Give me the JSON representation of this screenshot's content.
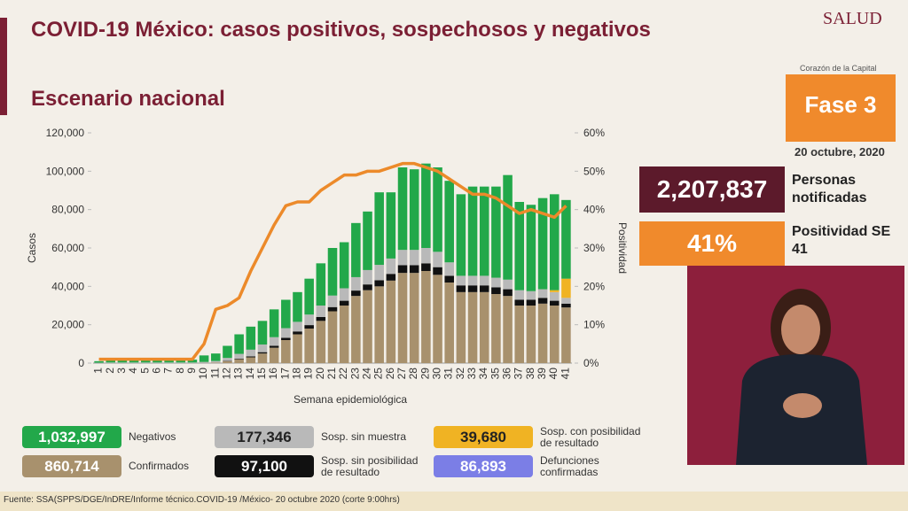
{
  "header": {
    "title": "COVID-19 México: casos positivos, sospechosos y negativos",
    "subtitle": "Escenario nacional",
    "logo": "SALUD",
    "logo_sub": "Corazón de la Capital",
    "phase": "Fase 3",
    "date": "20 octubre, 2020"
  },
  "kpis": [
    {
      "value": "2,207,837",
      "label": "Personas notificadas"
    },
    {
      "value": "41%",
      "label": "Positividad SE 41"
    }
  ],
  "footer": "Fuente: SSA(SPPS/DGE/InDRE/Informe técnico.COVID-19 /México- 20 octubre 2020 (corte 9:00hrs)",
  "chart_data": {
    "type": "bar",
    "stacked": true,
    "xlabel": "Semana epidemiológica",
    "ylabel": "Casos",
    "y2label": "Positividad",
    "categories": [
      "1",
      "2",
      "3",
      "4",
      "5",
      "6",
      "7",
      "8",
      "9",
      "10",
      "11",
      "12",
      "13",
      "14",
      "15",
      "16",
      "17",
      "18",
      "19",
      "20",
      "21",
      "22",
      "23",
      "24",
      "25",
      "26",
      "27",
      "28",
      "29",
      "30",
      "31",
      "32",
      "33",
      "34",
      "35",
      "36",
      "37",
      "38",
      "39",
      "40",
      "41"
    ],
    "ylim": [
      0,
      120000
    ],
    "yticks": [
      0,
      {
        "value": 20000,
        "label": "20,000"
      },
      {
        "value": 40000,
        "label": "40,000"
      },
      {
        "value": 60000,
        "label": "60,000"
      },
      {
        "value": 80000,
        "label": "80,000"
      },
      {
        "value": 100000,
        "label": "100,000"
      },
      {
        "value": 120000,
        "label": "120,000"
      }
    ],
    "y2lim": [
      0,
      60
    ],
    "y2ticks": [
      {
        "value": 0,
        "label": "0%"
      },
      {
        "value": 10,
        "label": "10%"
      },
      {
        "value": 20,
        "label": "20%"
      },
      {
        "value": 30,
        "label": "30%"
      },
      {
        "value": 40,
        "label": "40%"
      },
      {
        "value": 50,
        "label": "50%"
      },
      {
        "value": 60,
        "label": "60%"
      }
    ],
    "series": [
      {
        "name": "Confirmados",
        "total": "860,714",
        "color": "#a8916d",
        "values": [
          0,
          0,
          0,
          0,
          0,
          0,
          0,
          0,
          0,
          100,
          300,
          1000,
          2000,
          3000,
          5000,
          8000,
          12000,
          15000,
          18000,
          22000,
          27000,
          30000,
          35000,
          38000,
          40000,
          43000,
          47000,
          47000,
          48000,
          46000,
          42000,
          37000,
          37000,
          37000,
          36000,
          35000,
          30000,
          30000,
          31000,
          30000,
          29000
        ]
      },
      {
        "name": "Sosp. sin posibilidad de resultado",
        "total": "97,100",
        "color": "#111111",
        "values": [
          0,
          0,
          0,
          0,
          0,
          0,
          0,
          0,
          0,
          0,
          0,
          200,
          300,
          500,
          700,
          1000,
          1200,
          1500,
          1800,
          2000,
          2200,
          2500,
          2800,
          3000,
          3200,
          3500,
          4000,
          4000,
          4000,
          4000,
          3500,
          3500,
          3500,
          3500,
          3500,
          3500,
          3000,
          3000,
          3000,
          2500,
          2000
        ]
      },
      {
        "name": "Sosp. sin muestra",
        "total": "177,346",
        "color": "#b9b9b9",
        "values": [
          200,
          300,
          300,
          300,
          300,
          300,
          300,
          300,
          300,
          500,
          800,
          1500,
          2500,
          3500,
          4000,
          4500,
          5000,
          5000,
          5500,
          6000,
          6000,
          6500,
          7000,
          7500,
          8000,
          8000,
          8000,
          8000,
          8000,
          8000,
          7000,
          5000,
          5000,
          5000,
          5000,
          5000,
          5000,
          4500,
          4500,
          4500,
          3000
        ]
      },
      {
        "name": "Sosp. con posibilidad de resultado",
        "total": "39,680",
        "color": "#f0b323",
        "values": [
          0,
          0,
          0,
          0,
          0,
          0,
          0,
          0,
          0,
          0,
          0,
          0,
          0,
          0,
          0,
          0,
          0,
          0,
          0,
          0,
          0,
          0,
          0,
          0,
          0,
          0,
          0,
          0,
          0,
          0,
          0,
          0,
          0,
          0,
          0,
          0,
          0,
          0,
          0,
          1000,
          10000
        ]
      },
      {
        "name": "Negativos",
        "total": "1,032,997",
        "color": "#22a84a",
        "values": [
          800,
          1200,
          1700,
          2200,
          1700,
          1700,
          1700,
          1500,
          1500,
          3400,
          3900,
          6300,
          10200,
          12000,
          12300,
          14500,
          14800,
          15500,
          18700,
          22000,
          24800,
          24000,
          28200,
          30500,
          37800,
          34500,
          43000,
          42000,
          44000,
          44000,
          42500,
          42500,
          46500,
          46500,
          47500,
          54500,
          46000,
          45000,
          47500,
          50000,
          41000
        ]
      },
      {
        "type": "line",
        "axis": "y2",
        "color": "#ec8a2a",
        "values": [
          1,
          1,
          1,
          1,
          1,
          1,
          1,
          1,
          1,
          5,
          14,
          15,
          17,
          24,
          30,
          36,
          41,
          42,
          42,
          45,
          47,
          49,
          49,
          50,
          50,
          51,
          52,
          52,
          51,
          50,
          48,
          46,
          44,
          44,
          43,
          41,
          39,
          40,
          39,
          38,
          41
        ]
      }
    ],
    "deaths": {
      "name": "Defunciones confirmadas",
      "total": "86,893",
      "color": "#7b7ee6"
    }
  }
}
